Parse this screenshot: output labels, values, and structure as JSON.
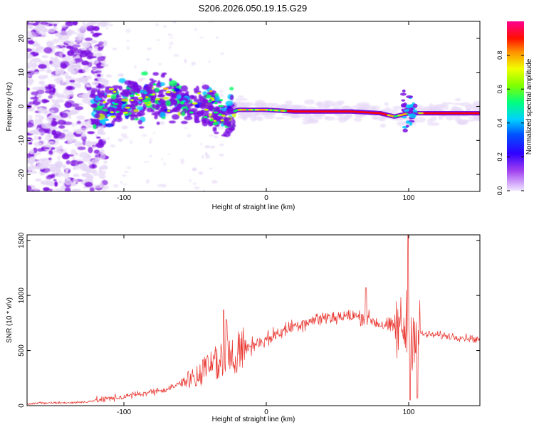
{
  "title": "S206.2026.050.19.15.G29",
  "chart_data": [
    {
      "type": "heatmap",
      "xlabel": "Height of straight line (km)",
      "ylabel": "Frequency (Hz)",
      "xlim": [
        -168,
        150
      ],
      "ylim": [
        -25,
        25
      ],
      "xticks": [
        -100,
        0,
        100
      ],
      "yticks": [
        -20,
        -10,
        0,
        10,
        20
      ],
      "colorbar": {
        "label": "Normalized spectral amplitude",
        "range": [
          0,
          1
        ],
        "ticks": [
          0,
          0.2,
          0.4,
          0.6,
          0.8
        ],
        "tick_labels": [
          "0.0",
          "0.2",
          "0.4",
          "0.6",
          "0.8"
        ],
        "colors": [
          "#e6d8f7",
          "#7a10e0",
          "#0000ff",
          "#00c8ff",
          "#00ff60",
          "#c8ff00",
          "#ffb000",
          "#ff0000",
          "#ff00a0"
        ]
      },
      "ridge": {
        "description": "dominant frequency track",
        "x": [
          -120,
          -100,
          -80,
          -60,
          -40,
          -30,
          -20,
          0,
          20,
          40,
          60,
          80,
          90,
          100,
          110,
          150
        ],
        "y": [
          -1,
          1,
          3,
          2,
          0,
          -3,
          -1,
          -1,
          -1.5,
          -1.5,
          -1.5,
          -2,
          -3,
          -2,
          -2,
          -2
        ]
      }
    },
    {
      "type": "line",
      "xlabel": "Height of straight line (km)",
      "ylabel": "SNR (10 * v/v)",
      "xlim": [
        -168,
        150
      ],
      "ylim": [
        0,
        1550
      ],
      "xticks": [
        -100,
        0,
        100
      ],
      "yticks": [
        0,
        500,
        1000,
        1500
      ],
      "color": "#e8302a",
      "envelope": {
        "x": [
          -168,
          -130,
          -100,
          -70,
          -50,
          -35,
          -20,
          -10,
          0,
          20,
          40,
          60,
          70,
          80,
          95,
          100,
          110,
          130,
          150
        ],
        "y": [
          20,
          30,
          80,
          150,
          250,
          400,
          480,
          550,
          600,
          730,
          800,
          810,
          800,
          740,
          700,
          700,
          650,
          630,
          600
        ]
      },
      "spikes": [
        {
          "x": -30,
          "y": 870
        },
        {
          "x": -28,
          "y": 780
        },
        {
          "x": 70,
          "y": 1070
        },
        {
          "x": 99.5,
          "y": 1550
        },
        {
          "x": 101,
          "y": 50
        },
        {
          "x": 106,
          "y": 70
        }
      ]
    }
  ]
}
